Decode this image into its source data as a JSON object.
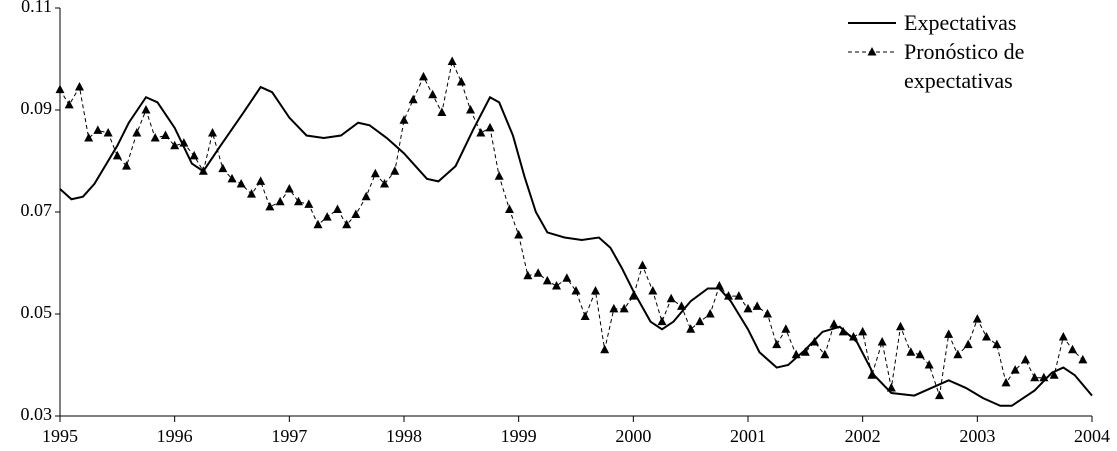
{
  "chart_data": {
    "type": "line",
    "xlim": [
      1995,
      2004
    ],
    "xticks": [
      1995,
      1996,
      1997,
      1998,
      1999,
      2000,
      2001,
      2002,
      2003,
      2004
    ],
    "ylim": [
      0.03,
      0.11
    ],
    "yticks": [
      0.03,
      0.05,
      0.07,
      0.09,
      0.11
    ],
    "legend": "top-right",
    "series": [
      {
        "name": "Expectativas",
        "color": "#000000",
        "style": "solid",
        "x": [
          1995,
          1995.1,
          1995.2,
          1995.3,
          1995.5,
          1995.6,
          1995.75,
          1995.85,
          1996,
          1996.15,
          1996.25,
          1996.4,
          1996.6,
          1996.75,
          1996.85,
          1997,
          1997.15,
          1997.3,
          1997.45,
          1997.6,
          1997.7,
          1997.85,
          1998,
          1998.2,
          1998.3,
          1998.45,
          1998.6,
          1998.75,
          1998.83,
          1998.95,
          1999.05,
          1999.15,
          1999.25,
          1999.4,
          1999.55,
          1999.7,
          1999.8,
          1999.9,
          2000,
          2000.15,
          2000.25,
          2000.35,
          2000.5,
          2000.65,
          2000.75,
          2000.85,
          2001,
          2001.1,
          2001.25,
          2001.35,
          2001.5,
          2001.65,
          2001.8,
          2001.95,
          2002.1,
          2002.25,
          2002.45,
          2002.6,
          2002.75,
          2002.9,
          2003.05,
          2003.2,
          2003.3,
          2003.5,
          2003.65,
          2003.75,
          2003.85,
          2004
        ],
        "values": [
          0.0745,
          0.0725,
          0.073,
          0.0755,
          0.083,
          0.0875,
          0.0925,
          0.0915,
          0.0865,
          0.0795,
          0.078,
          0.083,
          0.0895,
          0.0945,
          0.0935,
          0.0885,
          0.085,
          0.0845,
          0.085,
          0.0875,
          0.087,
          0.0845,
          0.0815,
          0.0765,
          0.076,
          0.079,
          0.086,
          0.0925,
          0.0915,
          0.085,
          0.077,
          0.07,
          0.066,
          0.065,
          0.0645,
          0.065,
          0.063,
          0.059,
          0.0545,
          0.0485,
          0.047,
          0.0485,
          0.0525,
          0.055,
          0.055,
          0.0525,
          0.047,
          0.0425,
          0.0395,
          0.04,
          0.043,
          0.0465,
          0.0475,
          0.0445,
          0.038,
          0.0345,
          0.034,
          0.0355,
          0.037,
          0.0355,
          0.0335,
          0.032,
          0.032,
          0.035,
          0.0385,
          0.0395,
          0.038,
          0.034
        ]
      },
      {
        "name": "Pronóstico de expectativas",
        "color": "#000000",
        "style": "dashed",
        "marker": "triangle",
        "x": [
          1995,
          1995.08,
          1995.17,
          1995.25,
          1995.33,
          1995.42,
          1995.5,
          1995.58,
          1995.67,
          1995.75,
          1995.83,
          1995.92,
          1996,
          1996.08,
          1996.17,
          1996.25,
          1996.33,
          1996.42,
          1996.5,
          1996.58,
          1996.67,
          1996.75,
          1996.83,
          1996.92,
          1997,
          1997.08,
          1997.17,
          1997.25,
          1997.33,
          1997.42,
          1997.5,
          1997.58,
          1997.67,
          1997.75,
          1997.83,
          1997.92,
          1998,
          1998.08,
          1998.17,
          1998.25,
          1998.33,
          1998.42,
          1998.5,
          1998.58,
          1998.67,
          1998.75,
          1998.83,
          1998.92,
          1999,
          1999.08,
          1999.17,
          1999.25,
          1999.33,
          1999.42,
          1999.5,
          1999.58,
          1999.67,
          1999.75,
          1999.83,
          1999.92,
          2000,
          2000.08,
          2000.17,
          2000.25,
          2000.33,
          2000.42,
          2000.5,
          2000.58,
          2000.67,
          2000.75,
          2000.83,
          2000.92,
          2001,
          2001.08,
          2001.17,
          2001.25,
          2001.33,
          2001.42,
          2001.5,
          2001.58,
          2001.67,
          2001.75,
          2001.83,
          2001.92,
          2002,
          2002.08,
          2002.17,
          2002.25,
          2002.33,
          2002.42,
          2002.5,
          2002.58,
          2002.67,
          2002.75,
          2002.83,
          2002.92,
          2003,
          2003.08,
          2003.17,
          2003.25,
          2003.33,
          2003.42,
          2003.5,
          2003.58,
          2003.67,
          2003.75,
          2003.83,
          2003.92
        ],
        "values": [
          0.094,
          0.091,
          0.0945,
          0.0845,
          0.086,
          0.0855,
          0.081,
          0.079,
          0.0855,
          0.09,
          0.0845,
          0.085,
          0.083,
          0.0835,
          0.081,
          0.078,
          0.0855,
          0.0785,
          0.0765,
          0.0755,
          0.0735,
          0.076,
          0.071,
          0.072,
          0.0745,
          0.072,
          0.0715,
          0.0675,
          0.069,
          0.0705,
          0.0675,
          0.0695,
          0.073,
          0.0775,
          0.0755,
          0.078,
          0.088,
          0.092,
          0.0965,
          0.093,
          0.0895,
          0.0995,
          0.0955,
          0.09,
          0.0855,
          0.0865,
          0.077,
          0.0705,
          0.0655,
          0.0575,
          0.058,
          0.0565,
          0.0555,
          0.057,
          0.0545,
          0.0495,
          0.0545,
          0.043,
          0.051,
          0.051,
          0.0535,
          0.0595,
          0.0545,
          0.0485,
          0.053,
          0.0515,
          0.047,
          0.0485,
          0.05,
          0.0555,
          0.0535,
          0.0535,
          0.051,
          0.0515,
          0.05,
          0.044,
          0.047,
          0.042,
          0.0425,
          0.0445,
          0.042,
          0.048,
          0.0465,
          0.0455,
          0.0465,
          0.038,
          0.0445,
          0.0355,
          0.0475,
          0.0425,
          0.042,
          0.04,
          0.034,
          0.046,
          0.042,
          0.044,
          0.049,
          0.0455,
          0.044,
          0.0365,
          0.039,
          0.041,
          0.0375,
          0.0375,
          0.038,
          0.0455,
          0.043,
          0.041
        ]
      }
    ]
  }
}
